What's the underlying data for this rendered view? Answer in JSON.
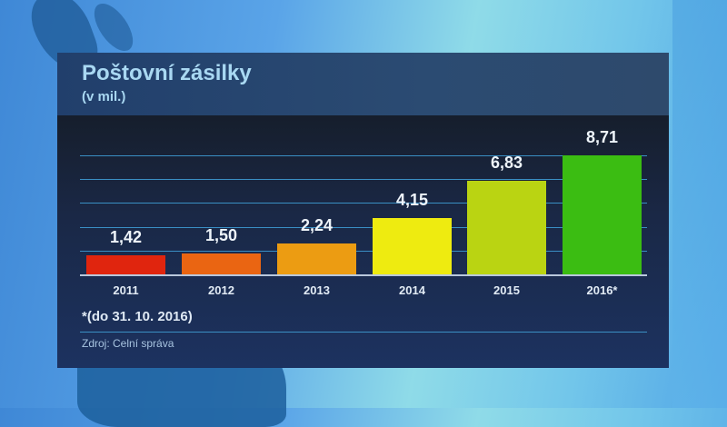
{
  "header": {
    "title": "Poštovní zásilky",
    "subtitle": "(v mil.)"
  },
  "footer": {
    "footnote": "*(do 31. 10. 2016)",
    "source": "Zdroj: Celní správa"
  },
  "colors": {
    "bar_2011": "#e0250e",
    "bar_2012": "#ea6512",
    "bar_2013": "#ec9c12",
    "bar_2014": "#eeeb10",
    "bar_2015": "#bad412",
    "bar_2016": "#3bbd12",
    "text_title": "#a9d8f2",
    "gridline": "#3a8fc4"
  },
  "chart_data": {
    "type": "bar",
    "title": "Poštovní zásilky",
    "subtitle": "(v mil.)",
    "xlabel": "",
    "ylabel": "v mil.",
    "categories": [
      "2011",
      "2012",
      "2013",
      "2014",
      "2015",
      "2016*"
    ],
    "values": [
      1.42,
      1.5,
      2.24,
      4.15,
      6.83,
      8.71
    ],
    "value_labels": [
      "1,42",
      "1,50",
      "2,24",
      "4,15",
      "6,83",
      "8,71"
    ],
    "ylim": [
      0,
      8.71
    ],
    "grid": true,
    "gridlines": 5,
    "legend": null,
    "annotations": [
      "*(do 31. 10. 2016)",
      "Zdroj: Celní správa"
    ]
  }
}
